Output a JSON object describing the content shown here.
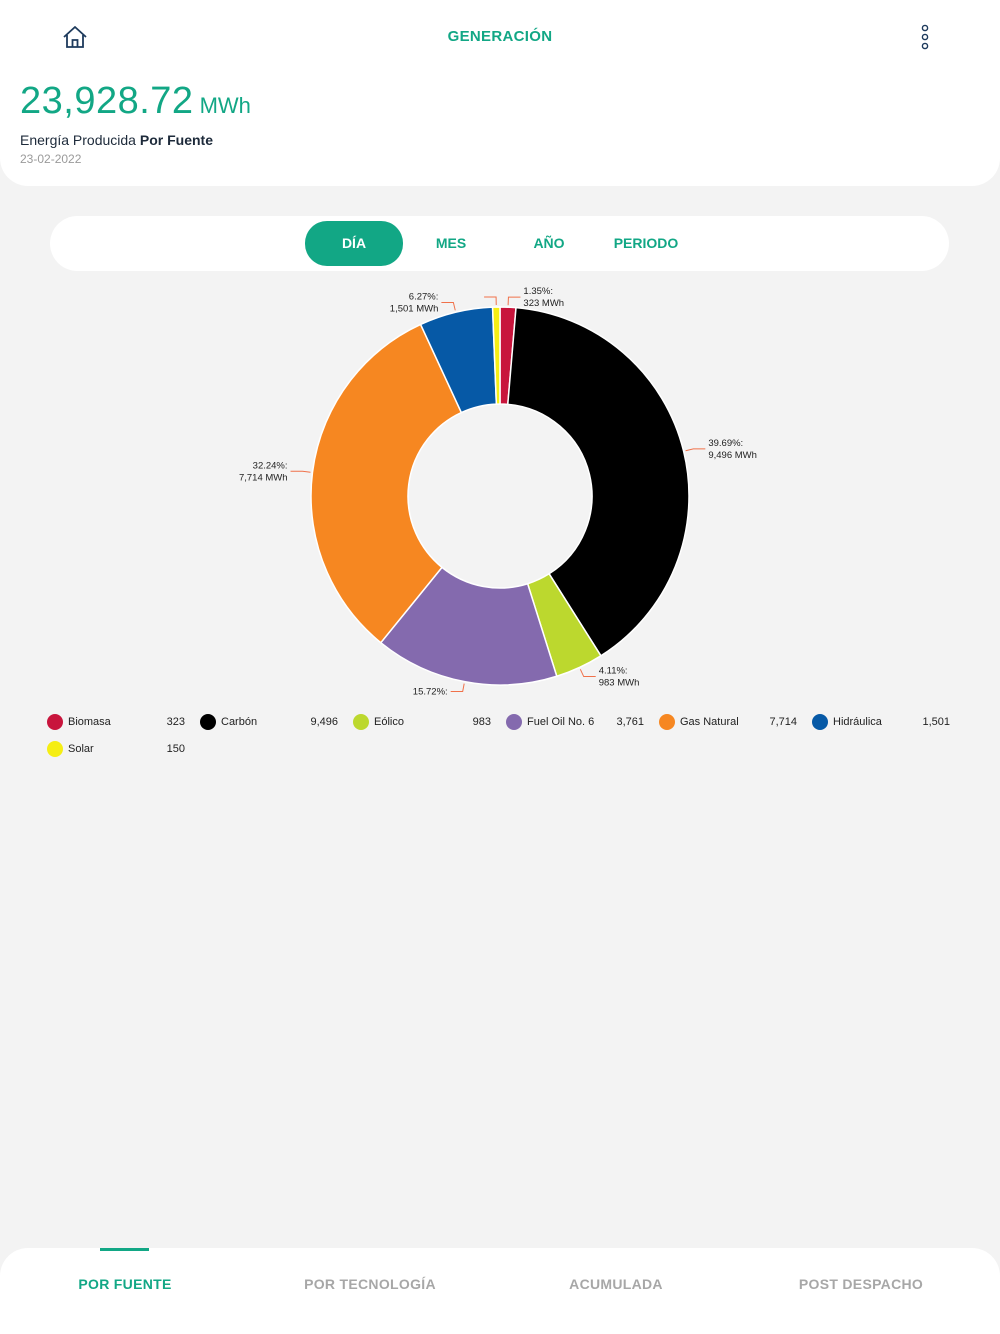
{
  "header": {
    "title": "GENERACIÓN",
    "total_value": "23,928.72",
    "total_unit": "MWh",
    "subtitle_prefix": "Energía Producida",
    "subtitle_bold": "Por Fuente",
    "date": "23-02-2022"
  },
  "icons": {
    "home": "home-icon",
    "more": "more-vertical-icon"
  },
  "period_tabs": [
    {
      "label": "DÍA",
      "active": true
    },
    {
      "label": "MES",
      "active": false
    },
    {
      "label": "AÑO",
      "active": false
    },
    {
      "label": "PERIODO",
      "active": false
    }
  ],
  "chart_data": {
    "type": "pie",
    "donut": true,
    "unit": "MWh",
    "slices": [
      {
        "name": "Biomasa",
        "value": 323,
        "percent": "1.35%",
        "label_value": "323 MWh",
        "color": "#c8153c"
      },
      {
        "name": "Carbón",
        "value": 9496,
        "percent": "39.69%",
        "label_value": "9,496 MWh",
        "color": "#000000"
      },
      {
        "name": "Eólico",
        "value": 983,
        "percent": "4.11%",
        "label_value": "983 MWh",
        "color": "#bcd82e"
      },
      {
        "name": "Fuel Oil No. 6",
        "value": 3761,
        "percent": "15.72%",
        "label_value": "",
        "color": "#846aae"
      },
      {
        "name": "Gas Natural",
        "value": 7714,
        "percent": "32.24%",
        "label_value": "7,714 MWh",
        "color": "#f68721"
      },
      {
        "name": "Hidráulica",
        "value": 1501,
        "percent": "6.27%",
        "label_value": "1,501 MWh",
        "color": "#0659a6"
      },
      {
        "name": "Solar",
        "value": 150,
        "percent": "",
        "label_value": "",
        "color": "#f5ee14"
      }
    ]
  },
  "legend": [
    {
      "name": "Biomasa",
      "value": "323",
      "color": "#c8153c"
    },
    {
      "name": "Carbón",
      "value": "9,496",
      "color": "#000000"
    },
    {
      "name": "Eólico",
      "value": "983",
      "color": "#bcd82e"
    },
    {
      "name": "Fuel Oil No. 6",
      "value": "3,761",
      "color": "#846aae"
    },
    {
      "name": "Gas Natural",
      "value": "7,714",
      "color": "#f68721"
    },
    {
      "name": "Hidráulica",
      "value": "1,501",
      "color": "#0659a6"
    },
    {
      "name": "Solar",
      "value": "150",
      "color": "#f5ee14"
    }
  ],
  "bottom_nav": [
    {
      "label": "POR FUENTE",
      "active": true
    },
    {
      "label": "POR TECNOLOGÍA",
      "active": false
    },
    {
      "label": "ACUMULADA",
      "active": false
    },
    {
      "label": "POST DESPACHO",
      "active": false
    }
  ],
  "colors": {
    "accent": "#12a785",
    "leader_line": "#f0714a"
  }
}
